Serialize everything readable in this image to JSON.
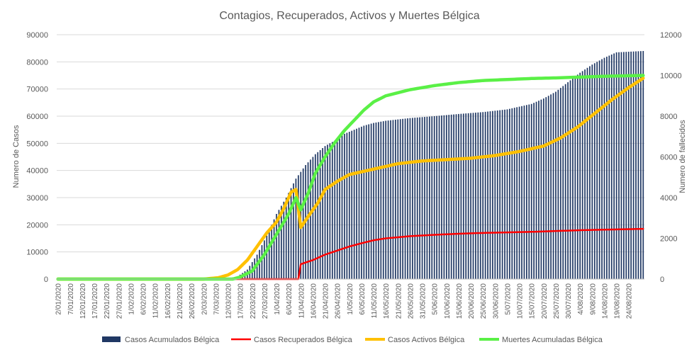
{
  "chart_data": {
    "type": "bar+line",
    "title": "Contagios, Recuperados, Activos y Muertes Bélgica",
    "ylabel_left": "Numero de Casos",
    "ylabel_right": "Numero de fallecidos",
    "ylim_left": [
      0,
      90000
    ],
    "ylim_right": [
      0,
      12000
    ],
    "yticks_left": [
      "0",
      "10000",
      "20000",
      "30000",
      "40000",
      "50000",
      "60000",
      "70000",
      "80000",
      "90000"
    ],
    "yticks_right": [
      "0",
      "2000",
      "4000",
      "6000",
      "8000",
      "10000",
      "12000"
    ],
    "x_start": "2020-01-02",
    "x_end": "2020-08-30",
    "xtick_labels": [
      "2/01/2020",
      "7/01/2020",
      "12/01/2020",
      "17/01/2020",
      "22/01/2020",
      "27/01/2020",
      "1/02/2020",
      "6/02/2020",
      "11/02/2020",
      "16/02/2020",
      "21/02/2020",
      "26/02/2020",
      "2/03/2020",
      "7/03/2020",
      "12/03/2020",
      "17/03/2020",
      "22/03/2020",
      "27/03/2020",
      "1/04/2020",
      "6/04/2020",
      "11/04/2020",
      "16/04/2020",
      "21/04/2020",
      "26/04/2020",
      "1/05/2020",
      "6/05/2020",
      "11/05/2020",
      "16/05/2020",
      "21/05/2020",
      "26/05/2020",
      "31/05/2020",
      "5/06/2020",
      "10/06/2020",
      "15/06/2020",
      "20/06/2020",
      "25/06/2020",
      "30/06/2020",
      "5/07/2020",
      "10/07/2020",
      "15/07/2020",
      "20/07/2020",
      "25/07/2020",
      "30/07/2020",
      "4/08/2020",
      "9/08/2020",
      "14/08/2020",
      "19/08/2020",
      "24/08/2020"
    ],
    "series": [
      {
        "name": "Casos Acumulados Bélgica",
        "type": "bar",
        "axis": "left",
        "color": "#203864",
        "anchors": [
          [
            0,
            0
          ],
          [
            58,
            0
          ],
          [
            70,
            200
          ],
          [
            74,
            1000
          ],
          [
            78,
            3500
          ],
          [
            82,
            9000
          ],
          [
            86,
            16000
          ],
          [
            90,
            24000
          ],
          [
            94,
            30000
          ],
          [
            98,
            37000
          ],
          [
            102,
            42000
          ],
          [
            106,
            46000
          ],
          [
            110,
            49000
          ],
          [
            114,
            51000
          ],
          [
            118,
            53500
          ],
          [
            122,
            55000
          ],
          [
            126,
            56500
          ],
          [
            130,
            57500
          ],
          [
            135,
            58300
          ],
          [
            145,
            59300
          ],
          [
            155,
            60000
          ],
          [
            165,
            60800
          ],
          [
            175,
            61500
          ],
          [
            185,
            62500
          ],
          [
            195,
            64500
          ],
          [
            200,
            66500
          ],
          [
            205,
            69000
          ],
          [
            210,
            72500
          ],
          [
            215,
            76000
          ],
          [
            220,
            79000
          ],
          [
            225,
            81500
          ],
          [
            230,
            83500
          ],
          [
            241,
            84000
          ]
        ]
      },
      {
        "name": "Casos Recuperados Bélgica",
        "type": "line",
        "axis": "left",
        "color": "#ff0000",
        "anchors": [
          [
            0,
            0
          ],
          [
            99,
            0
          ],
          [
            100,
            5500
          ],
          [
            105,
            7000
          ],
          [
            110,
            9000
          ],
          [
            115,
            10500
          ],
          [
            120,
            12000
          ],
          [
            125,
            13200
          ],
          [
            130,
            14300
          ],
          [
            135,
            15000
          ],
          [
            145,
            15800
          ],
          [
            155,
            16300
          ],
          [
            165,
            16700
          ],
          [
            175,
            17000
          ],
          [
            185,
            17200
          ],
          [
            195,
            17400
          ],
          [
            205,
            17700
          ],
          [
            215,
            18000
          ],
          [
            225,
            18200
          ],
          [
            241,
            18500
          ]
        ]
      },
      {
        "name": "Casos Activos Bélgica",
        "type": "line",
        "axis": "left",
        "color": "#ffc000",
        "anchors": [
          [
            0,
            0
          ],
          [
            60,
            0
          ],
          [
            66,
            500
          ],
          [
            70,
            1500
          ],
          [
            74,
            3500
          ],
          [
            78,
            7000
          ],
          [
            82,
            12000
          ],
          [
            86,
            17000
          ],
          [
            90,
            21000
          ],
          [
            93,
            26000
          ],
          [
            96,
            32000
          ],
          [
            98,
            33000
          ],
          [
            100,
            19000
          ],
          [
            103,
            23000
          ],
          [
            107,
            28000
          ],
          [
            110,
            33000
          ],
          [
            115,
            36000
          ],
          [
            120,
            38500
          ],
          [
            125,
            39500
          ],
          [
            130,
            40500
          ],
          [
            140,
            42500
          ],
          [
            150,
            43500
          ],
          [
            160,
            44000
          ],
          [
            170,
            44500
          ],
          [
            180,
            45500
          ],
          [
            190,
            47000
          ],
          [
            200,
            49000
          ],
          [
            207,
            52000
          ],
          [
            214,
            56000
          ],
          [
            221,
            61000
          ],
          [
            228,
            66000
          ],
          [
            235,
            70500
          ],
          [
            241,
            74000
          ]
        ]
      },
      {
        "name": "Muertes Acumuladas Bélgica",
        "type": "line",
        "axis": "right",
        "color": "#5af046",
        "anchors": [
          [
            0,
            0
          ],
          [
            72,
            0
          ],
          [
            75,
            100
          ],
          [
            80,
            400
          ],
          [
            85,
            1200
          ],
          [
            90,
            2200
          ],
          [
            95,
            3200
          ],
          [
            98,
            4000
          ],
          [
            100,
            3400
          ],
          [
            103,
            4200
          ],
          [
            106,
            5200
          ],
          [
            110,
            6000
          ],
          [
            114,
            6700
          ],
          [
            118,
            7300
          ],
          [
            122,
            7800
          ],
          [
            126,
            8300
          ],
          [
            130,
            8700
          ],
          [
            135,
            9000
          ],
          [
            145,
            9300
          ],
          [
            155,
            9500
          ],
          [
            165,
            9650
          ],
          [
            175,
            9750
          ],
          [
            185,
            9800
          ],
          [
            195,
            9850
          ],
          [
            205,
            9880
          ],
          [
            215,
            9920
          ],
          [
            225,
            9960
          ],
          [
            241,
            10000
          ]
        ]
      }
    ],
    "legend_position": "bottom"
  }
}
